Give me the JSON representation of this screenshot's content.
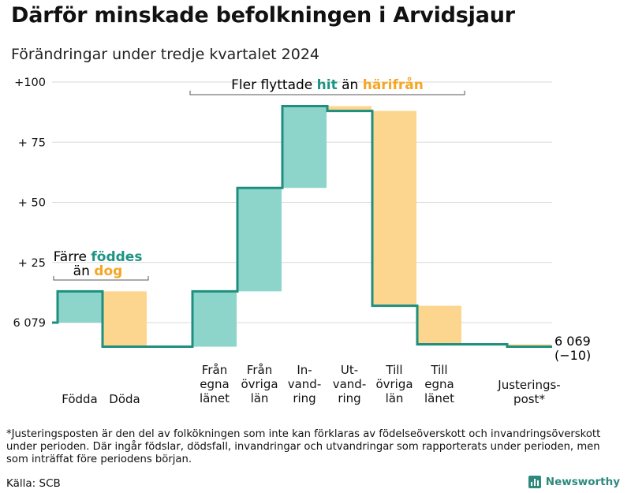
{
  "title": "Därför minskade befolkningen i Arvidsjaur",
  "subtitle": "Förändringar under tredje kvartalet 2024",
  "footnote": "*Justeringsposten är den del av folkökningen som inte kan förklaras av födelseöverskott och invandringsöverskott under perioden. Där ingår födslar, dödsfall, invandringar och utvandringar som rapporterats under perioden, men som inträffat före periodens början.",
  "source": "Källa: SCB",
  "brand": "Newsworthy",
  "colors": {
    "increase": "#8dd5cb",
    "decrease": "#fcd68f",
    "line": "#1e8f7e",
    "teal_text": "#1e9484",
    "orange_text": "#f5a623",
    "grid": "#d9d9d9"
  },
  "annotations": {
    "left": {
      "line1_a": "Färre ",
      "line1_b": "föddes",
      "line2_a": "än ",
      "line2_b": "dog"
    },
    "top": {
      "part1": "Fler flyttade ",
      "part2": "hit",
      "part3": " än ",
      "part4": "härifrån"
    }
  },
  "chart_data": {
    "type": "waterfall",
    "start_label": "6 079",
    "end_label": "6 069",
    "end_change_label": "(−10)",
    "y_ticks": [
      "+100",
      "+ 75",
      "+ 50",
      "+ 25",
      "6 079"
    ],
    "y_tick_values": [
      100,
      75,
      50,
      25,
      0
    ],
    "ylim": [
      -12,
      110
    ],
    "categories": [
      {
        "label": [
          "Födda"
        ],
        "change": 13
      },
      {
        "label": [
          "Döda"
        ],
        "change": -23
      },
      {
        "label": [
          "Från",
          "egna",
          "länet"
        ],
        "change": 23
      },
      {
        "label": [
          "Från",
          "övriga",
          "län"
        ],
        "change": 43
      },
      {
        "label": [
          "In-",
          "vand-",
          "ring"
        ],
        "change": 34
      },
      {
        "label": [
          "Ut-",
          "vand-",
          "ring"
        ],
        "change": -2
      },
      {
        "label": [
          "Till",
          "övriga",
          "län"
        ],
        "change": -81
      },
      {
        "label": [
          "Till",
          "egna",
          "länet"
        ],
        "change": -16
      },
      {
        "label": [
          "Justerings-",
          "post*"
        ],
        "change": -1
      }
    ]
  }
}
